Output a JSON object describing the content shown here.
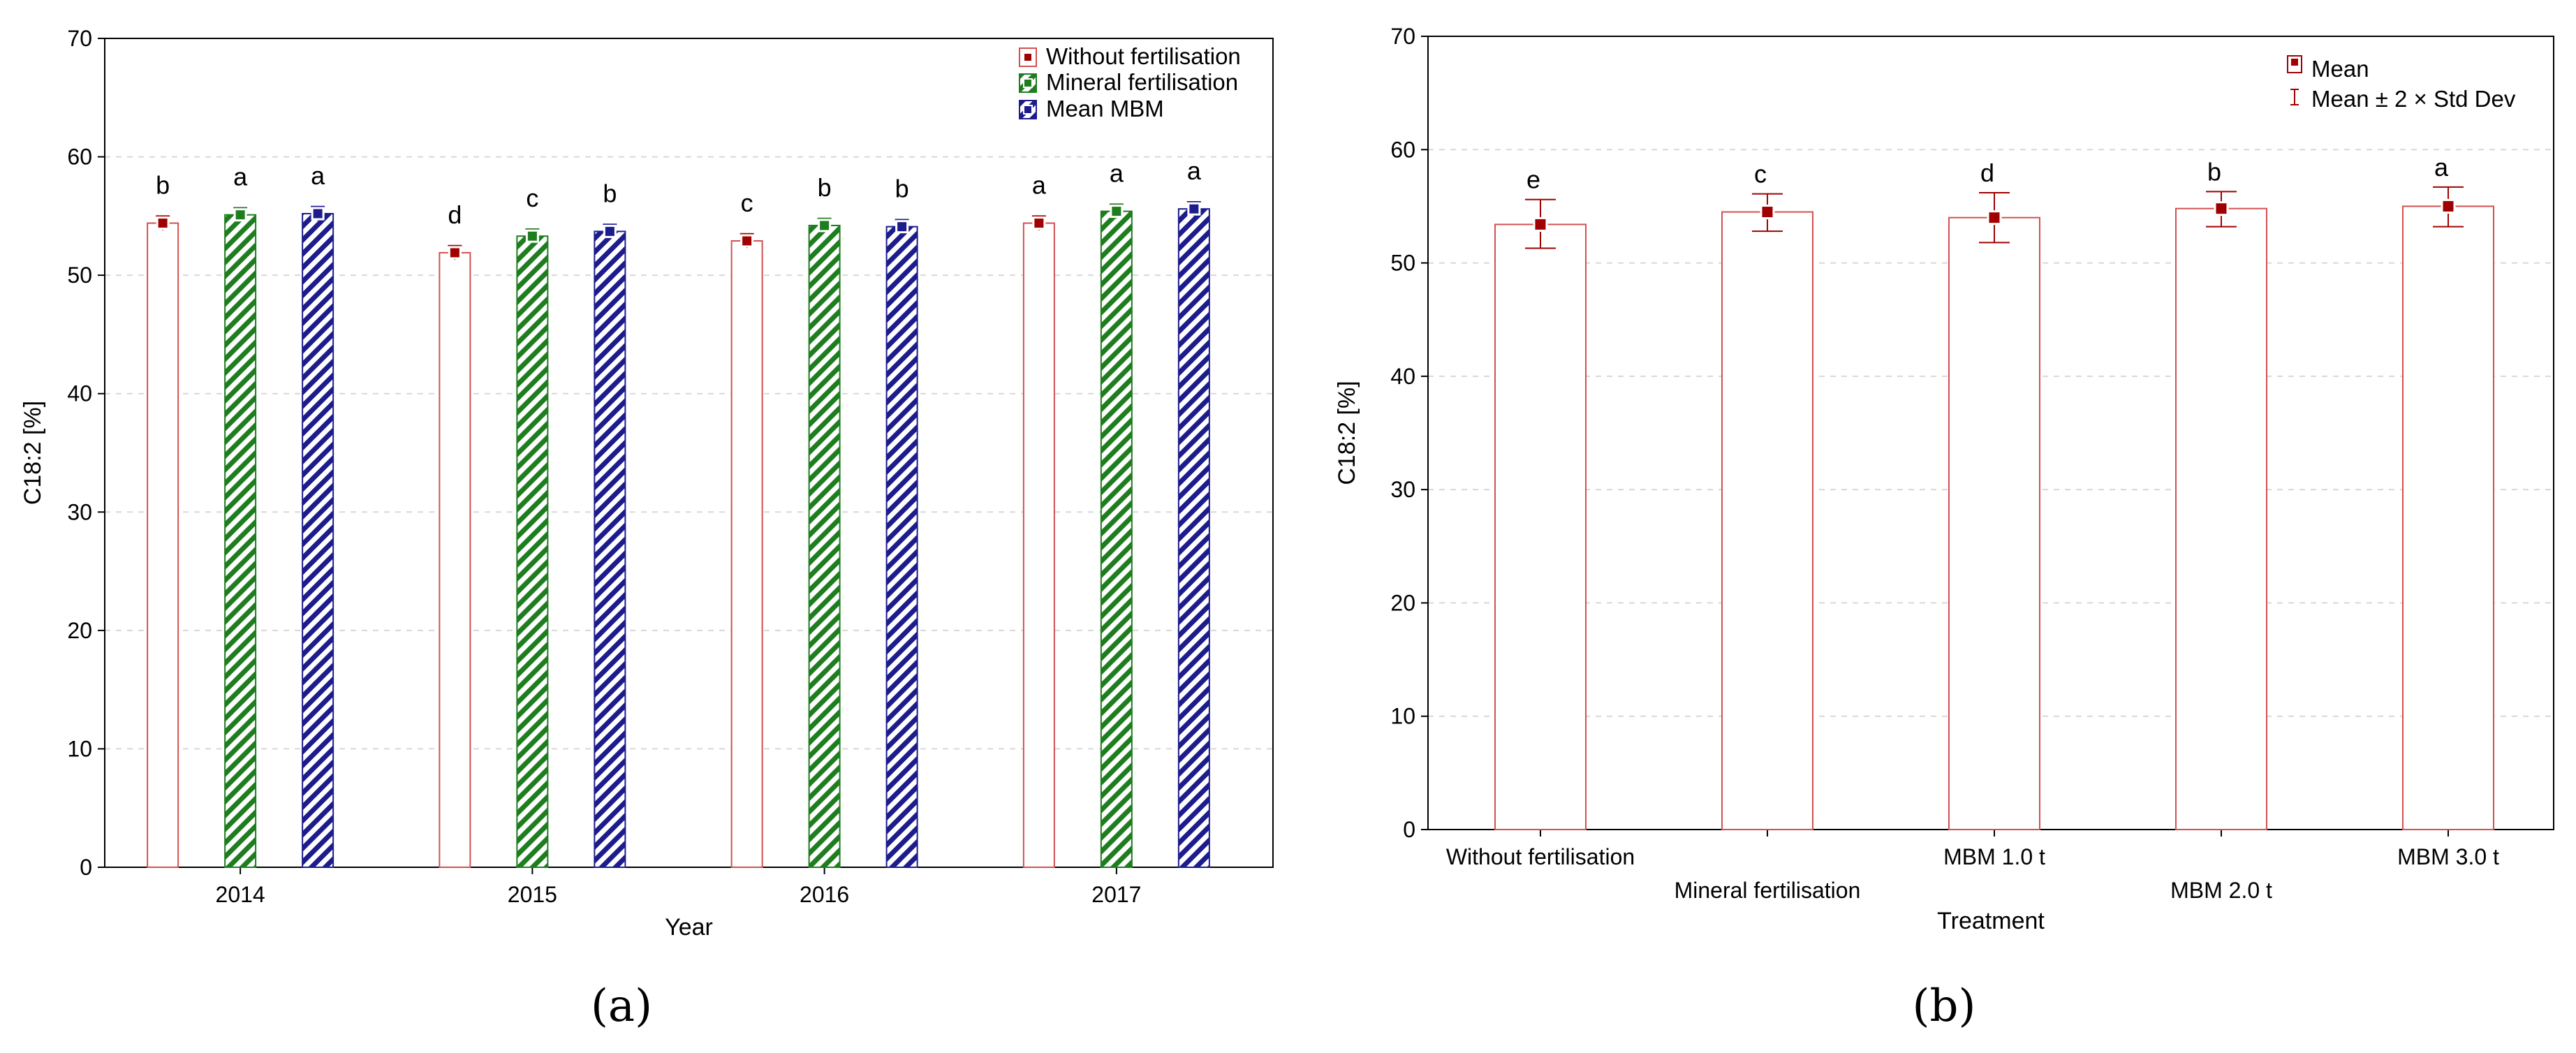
{
  "colors": {
    "without": "#a00000",
    "without_bar": "#d25050",
    "mineral": "#1e7d1e",
    "mbm": "#1c1c8c",
    "panel_b_bar": "#d25050"
  },
  "chart_data": [
    {
      "panel": "(a)",
      "type": "bar",
      "title": "",
      "xlabel": "Year",
      "ylabel": "C18:2 [%]",
      "ylim": [
        0,
        70
      ],
      "yticks": [
        0,
        10,
        20,
        30,
        40,
        50,
        60,
        70
      ],
      "categories": [
        "2014",
        "2015",
        "2016",
        "2017"
      ],
      "series": [
        {
          "name": "Without fertilisation",
          "values": [
            54.4,
            51.9,
            52.9,
            54.4
          ],
          "letters": [
            "b",
            "d",
            "c",
            "a"
          ]
        },
        {
          "name": "Mineral fertilisation",
          "values": [
            55.1,
            53.3,
            54.2,
            55.4
          ],
          "letters": [
            "a",
            "c",
            "b",
            "a"
          ]
        },
        {
          "name": "Mean MBM",
          "values": [
            55.2,
            53.7,
            54.1,
            55.6
          ],
          "letters": [
            "a",
            "b",
            "b",
            "a"
          ]
        }
      ],
      "legend_position": "top-right"
    },
    {
      "panel": "(b)",
      "type": "bar",
      "title": "",
      "xlabel": "Treatment",
      "ylabel": "C18:2 [%]",
      "ylim": [
        0,
        70
      ],
      "yticks": [
        0,
        10,
        20,
        30,
        40,
        50,
        60,
        70
      ],
      "categories": [
        "Without fertilisation",
        "Mineral fertilisation",
        "MBM 1.0 t",
        "MBM 2.0 t",
        "MBM 3.0 t"
      ],
      "values": [
        53.4,
        54.5,
        54.0,
        54.8,
        55.0
      ],
      "error_low": [
        51.3,
        52.8,
        51.8,
        53.2,
        53.2
      ],
      "error_high": [
        55.6,
        56.1,
        56.2,
        56.3,
        56.7
      ],
      "letters": [
        "e",
        "c",
        "d",
        "b",
        "a"
      ],
      "legend": [
        "Mean",
        "Mean ± 2 × Std Dev"
      ],
      "legend_position": "top-right"
    }
  ]
}
